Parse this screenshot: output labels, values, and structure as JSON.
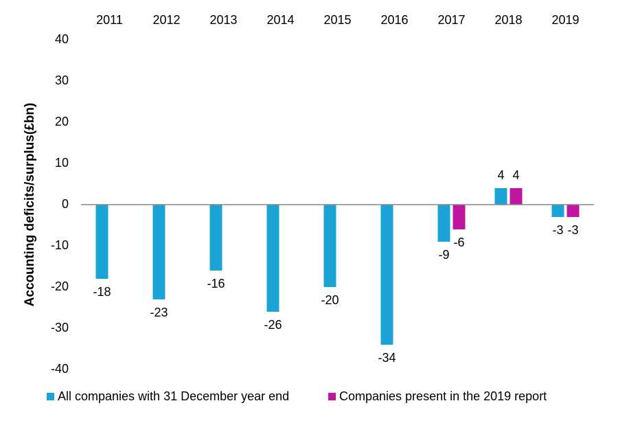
{
  "chart_data": {
    "type": "bar",
    "y_label": "Accounting deficits/surplus(£bn)",
    "categories": [
      "2011",
      "2012",
      "2013",
      "2014",
      "2015",
      "2016",
      "2017",
      "2018",
      "2019"
    ],
    "series": [
      {
        "name": "All companies with 31 December year end",
        "color": "#1ba3d6",
        "values": [
          -18,
          -23,
          -16,
          -26,
          -20,
          -34,
          -9,
          4,
          -3
        ]
      },
      {
        "name": "Companies present in the 2019 report",
        "color": "#c0169f",
        "values": [
          null,
          null,
          null,
          null,
          null,
          null,
          -6,
          4,
          -3
        ]
      }
    ],
    "ylim": [
      -40,
      40
    ],
    "yticks": [
      -40,
      -30,
      -20,
      -10,
      0,
      10,
      20,
      30,
      40
    ],
    "grid": false
  }
}
